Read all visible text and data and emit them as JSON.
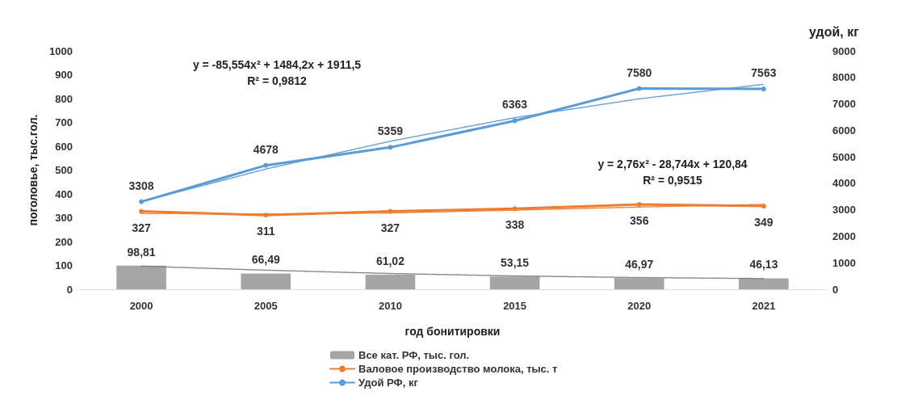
{
  "chart_data": {
    "type": "bar",
    "categories": [
      "2000",
      "2005",
      "2010",
      "2015",
      "2020",
      "2021"
    ],
    "series": [
      {
        "name": "Все кат. РФ, тыс. гол.",
        "color": "#a5a5a5",
        "values": [
          98.81,
          66.49,
          61.02,
          53.15,
          46.97,
          46.13
        ],
        "value_labels": [
          "98,81",
          "66,49",
          "61,02",
          "53,15",
          "46,97",
          "46,13"
        ]
      },
      {
        "name": "Валовое производство молока, тыс. т",
        "type": "line",
        "color": "#ed7d31",
        "marker": "circle",
        "line_style": "solid",
        "values": [
          327,
          311,
          327,
          338,
          356,
          349
        ],
        "value_labels": [
          "327",
          "311",
          "327",
          "338",
          "356",
          "349"
        ]
      },
      {
        "name": "Удой РФ, кг",
        "type": "line",
        "axis": "y2",
        "color": "#5b9bd5",
        "marker": "circle",
        "line_style": "solid",
        "values": [
          3308,
          4678,
          5359,
          6363,
          7580,
          7563
        ],
        "value_labels": [
          "3308",
          "4678",
          "5359",
          "6363",
          "7580",
          "7563"
        ]
      },
      {
        "type": "line",
        "color": "#7f7f7f",
        "line_style": "dotted",
        "marker": "none",
        "values": [
          97,
          80,
          66,
          56,
          49,
          45
        ]
      },
      {
        "type": "line",
        "color": "#ed7d31",
        "line_style": "dotted",
        "marker": "none",
        "values": [
          318,
          316,
          320,
          332,
          345,
          356
        ]
      },
      {
        "type": "line",
        "axis": "y2",
        "color": "#5b9bd5",
        "line_style": "dotted",
        "marker": "none",
        "values": [
          3310,
          4540,
          5590,
          6480,
          7190,
          7740
        ]
      }
    ],
    "xlabel": "год бонитировки",
    "ylabel": "поголовье, тыс.гол.",
    "y2label": "удой, кг",
    "ylim": [
      0,
      1000
    ],
    "yticks": [
      0,
      100,
      200,
      300,
      400,
      500,
      600,
      700,
      800,
      900,
      1000
    ],
    "y2lim": [
      0,
      9000
    ],
    "y2ticks": [
      0,
      1000,
      2000,
      3000,
      4000,
      5000,
      6000,
      7000,
      8000,
      9000
    ],
    "annotations": [
      "y = -85,554x² + 1484,2x + 1911,5\nR² = 0,9812",
      "y = 2,76x² - 28,744x + 120,84\nR² = 0,9515"
    ],
    "grid": false,
    "legend": "bottom"
  }
}
